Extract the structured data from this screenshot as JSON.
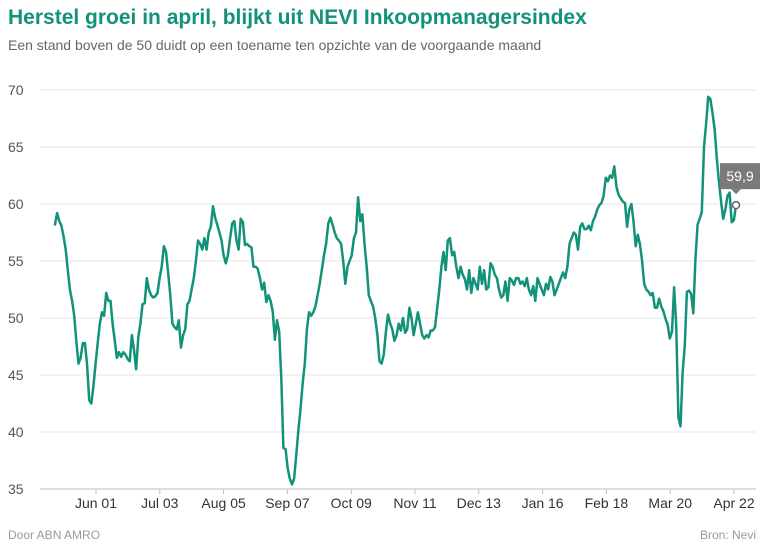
{
  "chart_data": {
    "type": "line",
    "title": "Herstel groei in april, blijkt uit NEVI Inkoopmanagersindex",
    "subtitle": "Een stand boven de 50 duidt op een toename ten opzichte van de voorgaande maand",
    "xlabel": "",
    "ylabel": "",
    "ylim": [
      35,
      70
    ],
    "yticks": [
      35,
      40,
      45,
      50,
      55,
      60,
      65,
      70
    ],
    "xticks": [
      "Jun 01",
      "Jul 03",
      "Aug 05",
      "Sep 07",
      "Oct 09",
      "Nov 11",
      "Dec 13",
      "Jan 16",
      "Feb 18",
      "Mar 20",
      "Apr 22"
    ],
    "grid": true,
    "series": [
      {
        "name": "NEVI Inkoopmanagersindex",
        "color": "#129279",
        "values": [
          58.2,
          59.2,
          58.5,
          58.1,
          57.2,
          56.0,
          54.2,
          52.5,
          51.5,
          50.2,
          48.0,
          46.0,
          46.5,
          47.8,
          47.8,
          46.0,
          42.8,
          42.5,
          44.0,
          46.0,
          47.8,
          49.5,
          50.5,
          50.2,
          52.2,
          51.5,
          51.5,
          49.5,
          48.0,
          46.5,
          47.0,
          46.6,
          47.0,
          46.8,
          46.4,
          46.2,
          48.5,
          47.2,
          45.5,
          48.3,
          49.5,
          51.2,
          51.3,
          53.5,
          52.5,
          52.0,
          51.8,
          51.9,
          52.2,
          53.5,
          54.5,
          56.3,
          55.8,
          54.0,
          52.0,
          49.5,
          49.2,
          49.0,
          49.8,
          47.4,
          48.5,
          49.0,
          51.2,
          51.5,
          52.5,
          53.5,
          55.0,
          56.8,
          56.5,
          56.0,
          57.0,
          56.0,
          57.5,
          58.0,
          59.8,
          58.8,
          58.2,
          57.5,
          56.8,
          55.5,
          54.8,
          55.5,
          57.0,
          58.3,
          58.5,
          56.8,
          56.0,
          58.7,
          58.4,
          56.4,
          56.5,
          56.3,
          56.2,
          54.5,
          54.5,
          54.3,
          53.5,
          52.5,
          53.1,
          51.4,
          52.0,
          51.5,
          50.6,
          48.1,
          49.8,
          48.8,
          44.7,
          38.6,
          38.5,
          36.8,
          35.9,
          35.4,
          35.9,
          37.9,
          40.2,
          42.0,
          44.2,
          46.0,
          49.0,
          50.5,
          50.2,
          50.5,
          51.0,
          52.0,
          53.0,
          54.2,
          55.5,
          56.5,
          58.3,
          58.8,
          58.2,
          57.5,
          57.0,
          56.8,
          56.5,
          55.0,
          53.0,
          54.5,
          55.0,
          55.5,
          57.0,
          57.5,
          60.6,
          58.5,
          59.1,
          56.5,
          54.5,
          52.0,
          51.5,
          51.0,
          50.0,
          48.5,
          46.2,
          46.0,
          46.8,
          48.8,
          50.3,
          49.5,
          49.0,
          48.0,
          48.5,
          49.5,
          48.9,
          50.0,
          48.7,
          49.0,
          50.9,
          50.0,
          48.5,
          49.5,
          50.5,
          49.5,
          48.5,
          48.2,
          48.5,
          48.3,
          48.9,
          48.9,
          49.2,
          50.8,
          52.5,
          54.5,
          55.8,
          54.2,
          56.8,
          57.0,
          55.5,
          55.8,
          54.5,
          53.5,
          54.5,
          53.8,
          53.4,
          52.5,
          54.2,
          52.2,
          53.5,
          53.0,
          52.5,
          54.5,
          53.0,
          54.2,
          52.5,
          52.7,
          54.8,
          54.5,
          53.8,
          53.5,
          52.5,
          51.8,
          52.0,
          53.2,
          51.5,
          53.5,
          53.3,
          52.9,
          53.5,
          53.5,
          53.0,
          53.2,
          52.8,
          53.5,
          52.5,
          52.0,
          52.8,
          51.5,
          53.5,
          53.0,
          52.5,
          52.0,
          53.0,
          52.5,
          53.6,
          53.2,
          52.0,
          52.5,
          53.0,
          53.5,
          54.0,
          53.5,
          54.5,
          56.5,
          57.0,
          57.5,
          57.3,
          56.0,
          58.0,
          58.3,
          57.8,
          57.8,
          58.1,
          57.7,
          58.5,
          58.9,
          59.5,
          59.9,
          60.1,
          60.7,
          62.3,
          62.0,
          62.5,
          62.3,
          63.3,
          61.5,
          60.8,
          60.5,
          60.2,
          60.1,
          58.0,
          59.5,
          60.0,
          58.5,
          56.3,
          57.3,
          56.5,
          55.0,
          53.0,
          52.5,
          52.3,
          52.0,
          52.2,
          50.9,
          50.9,
          51.7,
          51.0,
          50.6,
          49.9,
          49.4,
          48.2,
          48.8,
          52.7,
          49.4,
          41.3,
          40.5,
          45.2,
          47.6,
          52.3,
          52.4,
          52.1,
          50.4,
          55.1,
          58.2,
          58.7,
          59.3,
          65.0,
          67.0,
          69.4,
          69.2,
          68.0,
          66.5,
          64.0,
          62.0,
          60.2,
          58.7,
          59.5,
          60.7,
          61.0,
          58.4,
          58.6,
          59.9
        ]
      }
    ],
    "highlight": {
      "label": "59,9",
      "value": 59.9
    }
  },
  "footer": {
    "left": "Door ABN AMRO",
    "right": "Bron: Nevi"
  }
}
